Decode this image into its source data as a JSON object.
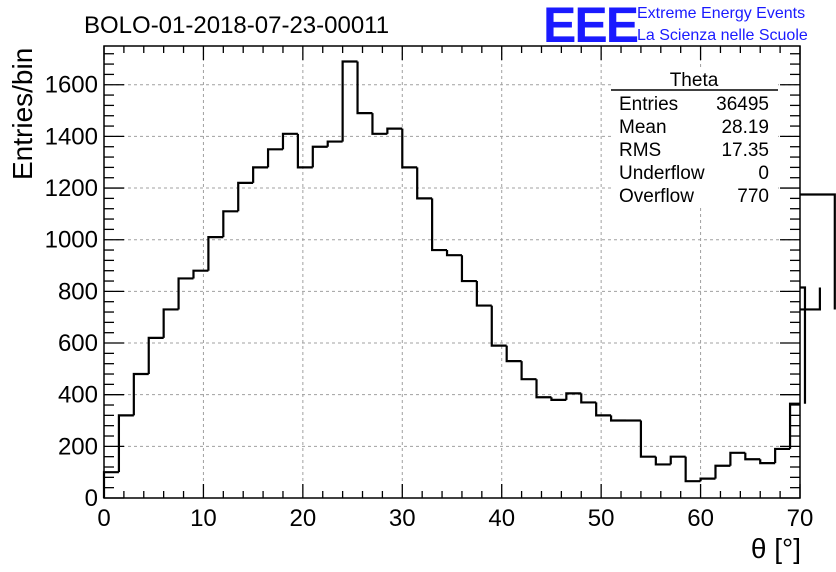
{
  "chart_data": {
    "type": "bar",
    "title": "BOLO-01-2018-07-23-00011",
    "xlabel": "θ [°]",
    "ylabel": "Entries/bin",
    "xlim": [
      0,
      70
    ],
    "ylim": [
      0,
      1750
    ],
    "bin_width": 1.5,
    "x_ticks": [
      0,
      10,
      20,
      30,
      40,
      50,
      60,
      70
    ],
    "y_ticks": [
      0,
      200,
      400,
      600,
      800,
      1000,
      1200,
      1400,
      1600
    ],
    "grid": true,
    "values": [
      100,
      320,
      480,
      620,
      730,
      850,
      880,
      1010,
      1110,
      1220,
      1280,
      1350,
      1410,
      1280,
      1360,
      1380,
      1690,
      1490,
      1410,
      1430,
      1280,
      1160,
      960,
      940,
      840,
      745,
      590,
      530,
      460,
      390,
      380,
      405,
      370,
      320,
      300,
      300,
      160,
      130,
      160,
      65,
      75,
      125,
      175,
      150,
      135,
      190,
      365,
      815,
      730,
      1175
    ],
    "stats": {
      "title": "Theta",
      "rows": [
        {
          "label": "Entries",
          "value": "36495"
        },
        {
          "label": "Mean",
          "value": "28.19"
        },
        {
          "label": "RMS",
          "value": "17.35"
        },
        {
          "label": "Underflow",
          "value": "0"
        },
        {
          "label": "Overflow",
          "value": "770"
        }
      ]
    },
    "colors": {
      "line": "#000000",
      "grid": "#a0a0a0",
      "logo": "#1a1aff"
    }
  },
  "logo": {
    "text": "EEE",
    "line1": "Extreme Energy Events",
    "line2": "La Scienza nelle Scuole"
  }
}
